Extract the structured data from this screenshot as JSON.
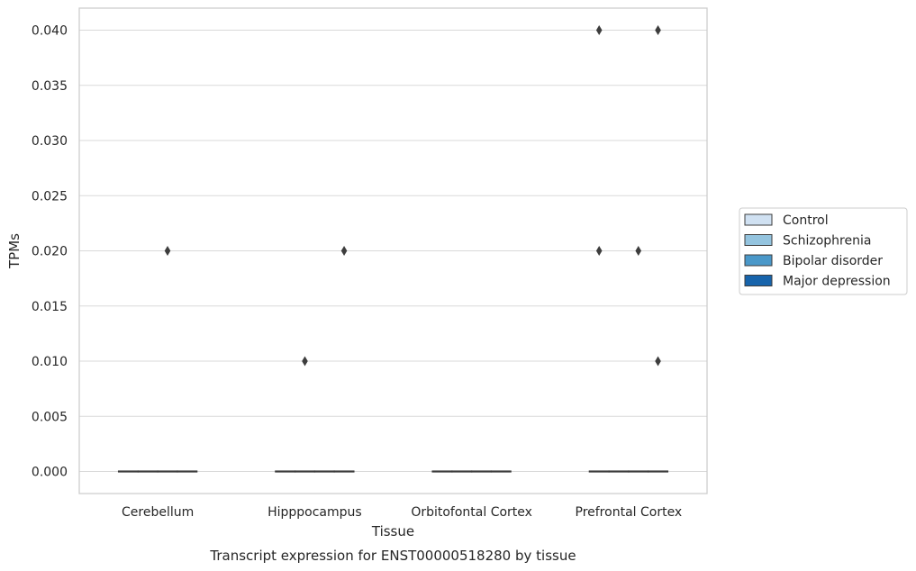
{
  "chart_data": {
    "type": "box",
    "title": "",
    "caption": "Transcript expression for ENST00000518280 by tissue",
    "xlabel": "Tissue",
    "ylabel": "TPMs",
    "ylim": [
      -0.002,
      0.042
    ],
    "yticks": [
      0.0,
      0.005,
      0.01,
      0.015,
      0.02,
      0.025,
      0.03,
      0.035,
      0.04
    ],
    "ytick_labels": [
      "0.000",
      "0.005",
      "0.010",
      "0.015",
      "0.020",
      "0.025",
      "0.030",
      "0.035",
      "0.040"
    ],
    "grid": "y",
    "legend_position": "right",
    "categories": [
      "Cerebellum",
      "Hipppocampus",
      "Orbitofontal Cortex",
      "Prefrontal Cortex"
    ],
    "series": [
      {
        "name": "Control",
        "color": "#d0e1f2",
        "boxes": [
          {
            "median": 0,
            "q1": 0,
            "q3": 0,
            "whisker_low": 0,
            "whisker_high": 0,
            "outliers": []
          },
          {
            "median": 0,
            "q1": 0,
            "q3": 0,
            "whisker_low": 0,
            "whisker_high": 0,
            "outliers": []
          },
          {
            "median": 0,
            "q1": 0,
            "q3": 0,
            "whisker_low": 0,
            "whisker_high": 0,
            "outliers": []
          },
          {
            "median": 0,
            "q1": 0,
            "q3": 0,
            "whisker_low": 0,
            "whisker_high": 0,
            "outliers": [
              0.04,
              0.02
            ]
          }
        ]
      },
      {
        "name": "Schizophrenia",
        "color": "#94c4df",
        "boxes": [
          {
            "median": 0,
            "q1": 0,
            "q3": 0,
            "whisker_low": 0,
            "whisker_high": 0,
            "outliers": []
          },
          {
            "median": 0,
            "q1": 0,
            "q3": 0,
            "whisker_low": 0,
            "whisker_high": 0,
            "outliers": [
              0.01
            ]
          },
          {
            "median": 0,
            "q1": 0,
            "q3": 0,
            "whisker_low": 0,
            "whisker_high": 0,
            "outliers": []
          },
          {
            "median": 0,
            "q1": 0,
            "q3": 0,
            "whisker_low": 0,
            "whisker_high": 0,
            "outliers": []
          }
        ]
      },
      {
        "name": "Bipolar disorder",
        "color": "#4a98c9",
        "boxes": [
          {
            "median": 0,
            "q1": 0,
            "q3": 0,
            "whisker_low": 0,
            "whisker_high": 0,
            "outliers": [
              0.02
            ]
          },
          {
            "median": 0,
            "q1": 0,
            "q3": 0,
            "whisker_low": 0,
            "whisker_high": 0,
            "outliers": []
          },
          {
            "median": 0,
            "q1": 0,
            "q3": 0,
            "whisker_low": 0,
            "whisker_high": 0,
            "outliers": []
          },
          {
            "median": 0,
            "q1": 0,
            "q3": 0,
            "whisker_low": 0,
            "whisker_high": 0,
            "outliers": [
              0.02
            ]
          }
        ]
      },
      {
        "name": "Major depression",
        "color": "#1764ab",
        "boxes": [
          {
            "median": 0,
            "q1": 0,
            "q3": 0,
            "whisker_low": 0,
            "whisker_high": 0,
            "outliers": []
          },
          {
            "median": 0,
            "q1": 0,
            "q3": 0,
            "whisker_low": 0,
            "whisker_high": 0,
            "outliers": [
              0.02
            ]
          },
          {
            "median": 0,
            "q1": 0,
            "q3": 0,
            "whisker_low": 0,
            "whisker_high": 0,
            "outliers": []
          },
          {
            "median": 0,
            "q1": 0,
            "q3": 0,
            "whisker_low": 0,
            "whisker_high": 0,
            "outliers": [
              0.04,
              0.01
            ]
          }
        ]
      }
    ]
  }
}
